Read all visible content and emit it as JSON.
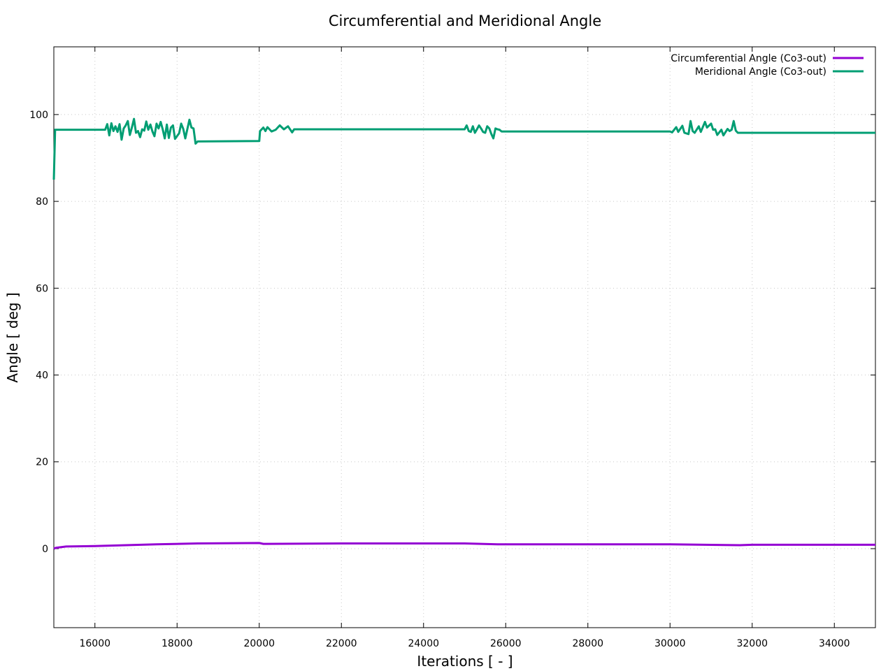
{
  "chart_data": {
    "type": "line",
    "title": "Circumferential and Meridional Angle",
    "xlabel": "Iterations [ - ]",
    "ylabel": "Angle [ deg ]",
    "xlim": [
      15000,
      35000
    ],
    "ylim": [
      -18.2,
      115.6
    ],
    "xticks": [
      16000,
      18000,
      20000,
      22000,
      24000,
      26000,
      28000,
      30000,
      32000,
      34000
    ],
    "yticks": [
      0,
      20,
      40,
      60,
      80,
      100
    ],
    "grid": true,
    "legend_position": "top-right",
    "series": [
      {
        "name": "Circumferential Angle (Co3-out)",
        "color": "#9400d3",
        "points": [
          [
            15000,
            0
          ],
          [
            15050,
            0.2
          ],
          [
            15300,
            0.5
          ],
          [
            16000,
            0.6
          ],
          [
            17500,
            1.0
          ],
          [
            18500,
            1.2
          ],
          [
            20000,
            1.3
          ],
          [
            20100,
            1.1
          ],
          [
            22000,
            1.2
          ],
          [
            25000,
            1.2
          ],
          [
            25800,
            1.0
          ],
          [
            30000,
            1.0
          ],
          [
            31700,
            0.8
          ],
          [
            32000,
            0.9
          ],
          [
            35000,
            0.9
          ]
        ]
      },
      {
        "name": "Meridional Angle (Co3-out)",
        "color": "#009e73",
        "points": [
          [
            15000,
            85
          ],
          [
            15030,
            96.5
          ],
          [
            16250,
            96.5
          ],
          [
            16300,
            97.8
          ],
          [
            16350,
            95.2
          ],
          [
            16400,
            98
          ],
          [
            16450,
            96.2
          ],
          [
            16500,
            97.3
          ],
          [
            16550,
            96
          ],
          [
            16600,
            97.8
          ],
          [
            16650,
            94.2
          ],
          [
            16700,
            96.8
          ],
          [
            16750,
            97.5
          ],
          [
            16800,
            98.5
          ],
          [
            16850,
            95.3
          ],
          [
            16900,
            97
          ],
          [
            16950,
            99
          ],
          [
            17000,
            95.8
          ],
          [
            17050,
            96.2
          ],
          [
            17100,
            94.8
          ],
          [
            17150,
            96.6
          ],
          [
            17200,
            96.3
          ],
          [
            17250,
            98.4
          ],
          [
            17300,
            96.5
          ],
          [
            17350,
            97.7
          ],
          [
            17400,
            96.1
          ],
          [
            17450,
            95
          ],
          [
            17500,
            97.9
          ],
          [
            17550,
            96.8
          ],
          [
            17600,
            98.3
          ],
          [
            17650,
            96.6
          ],
          [
            17700,
            94.5
          ],
          [
            17750,
            97.7
          ],
          [
            17800,
            94.6
          ],
          [
            17850,
            97
          ],
          [
            17900,
            97.5
          ],
          [
            17950,
            94.4
          ],
          [
            18050,
            95.7
          ],
          [
            18100,
            97.9
          ],
          [
            18150,
            96.7
          ],
          [
            18200,
            94.5
          ],
          [
            18300,
            98.8
          ],
          [
            18350,
            97
          ],
          [
            18400,
            96.8
          ],
          [
            18450,
            93.3
          ],
          [
            18500,
            93.8
          ],
          [
            20000,
            93.9
          ],
          [
            20020,
            96.2
          ],
          [
            20100,
            97
          ],
          [
            20150,
            96.2
          ],
          [
            20200,
            97.1
          ],
          [
            20300,
            96.1
          ],
          [
            20400,
            96.5
          ],
          [
            20500,
            97.5
          ],
          [
            20600,
            96.6
          ],
          [
            20700,
            97.3
          ],
          [
            20800,
            95.9
          ],
          [
            20850,
            96.6
          ],
          [
            25000,
            96.6
          ],
          [
            25050,
            97.5
          ],
          [
            25100,
            96.2
          ],
          [
            25150,
            96
          ],
          [
            25200,
            97.3
          ],
          [
            25250,
            95.8
          ],
          [
            25300,
            96.6
          ],
          [
            25350,
            97.5
          ],
          [
            25400,
            96.8
          ],
          [
            25450,
            96
          ],
          [
            25500,
            95.8
          ],
          [
            25550,
            97.3
          ],
          [
            25600,
            96.8
          ],
          [
            25650,
            95.5
          ],
          [
            25700,
            94.5
          ],
          [
            25750,
            96.8
          ],
          [
            25800,
            96.6
          ],
          [
            25850,
            96.5
          ],
          [
            25900,
            96.1
          ],
          [
            30000,
            96.1
          ],
          [
            30050,
            95.9
          ],
          [
            30150,
            97.1
          ],
          [
            30200,
            96
          ],
          [
            30300,
            97.4
          ],
          [
            30350,
            95.8
          ],
          [
            30450,
            95.5
          ],
          [
            30500,
            98.5
          ],
          [
            30550,
            96.2
          ],
          [
            30600,
            95.8
          ],
          [
            30700,
            97.3
          ],
          [
            30750,
            96
          ],
          [
            30850,
            98.3
          ],
          [
            30900,
            97
          ],
          [
            31000,
            97.9
          ],
          [
            31050,
            96.5
          ],
          [
            31100,
            96.6
          ],
          [
            31150,
            95.3
          ],
          [
            31250,
            96.5
          ],
          [
            31300,
            95.2
          ],
          [
            31400,
            96.7
          ],
          [
            31450,
            96.2
          ],
          [
            31500,
            96.5
          ],
          [
            31550,
            98.5
          ],
          [
            31600,
            96.3
          ],
          [
            31650,
            95.8
          ],
          [
            35000,
            95.8
          ]
        ]
      }
    ]
  }
}
